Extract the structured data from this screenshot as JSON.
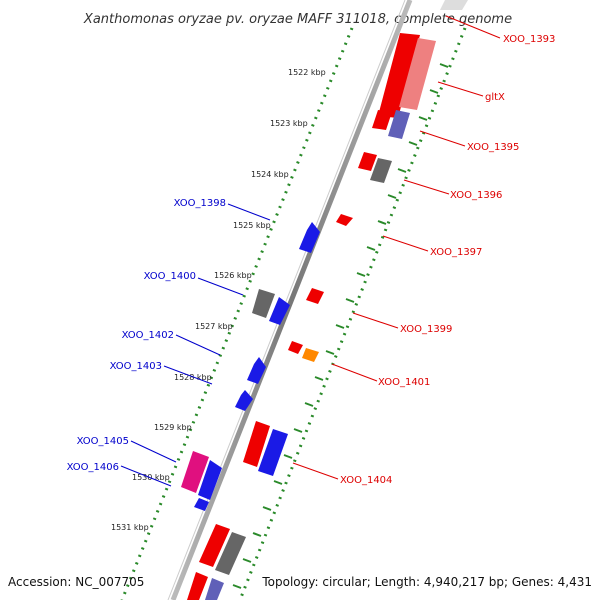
{
  "title": "Xanthomonas oryzae pv. oryzae MAFF 311018, complete genome",
  "footer": {
    "accession": "Accession: NC_007705",
    "topology": "Topology: circular; Length: 4,940,217 bp; Genes: 4,431"
  },
  "ticks": [
    "1522 kbp",
    "1523 kbp",
    "1524 kbp",
    "1525 kbp",
    "1526 kbp",
    "1527 kbp",
    "1528 kbp",
    "1529 kbp",
    "1530 kbp",
    "1531 kbp"
  ],
  "genes": {
    "forward": [
      "XOO_1393",
      "gltX",
      "XOO_1395",
      "XOO_1396",
      "XOO_1397",
      "XOO_1399",
      "XOO_1401",
      "XOO_1404"
    ],
    "reverse": [
      "XOO_1398",
      "XOO_1400",
      "XOO_1402",
      "XOO_1403",
      "XOO_1405",
      "XOO_1406"
    ]
  },
  "colors": {
    "forward_label": "#dd0000",
    "reverse_label": "#0000cc",
    "forward_gene": "#ee0000",
    "reverse_gene": "#1a1ae6",
    "pseudo_gene": "#666666",
    "rna_gene": "#ff8800",
    "pink_gene": "#e0107f",
    "tick_dots": "#2a8a2a",
    "backbone": "#888888"
  }
}
